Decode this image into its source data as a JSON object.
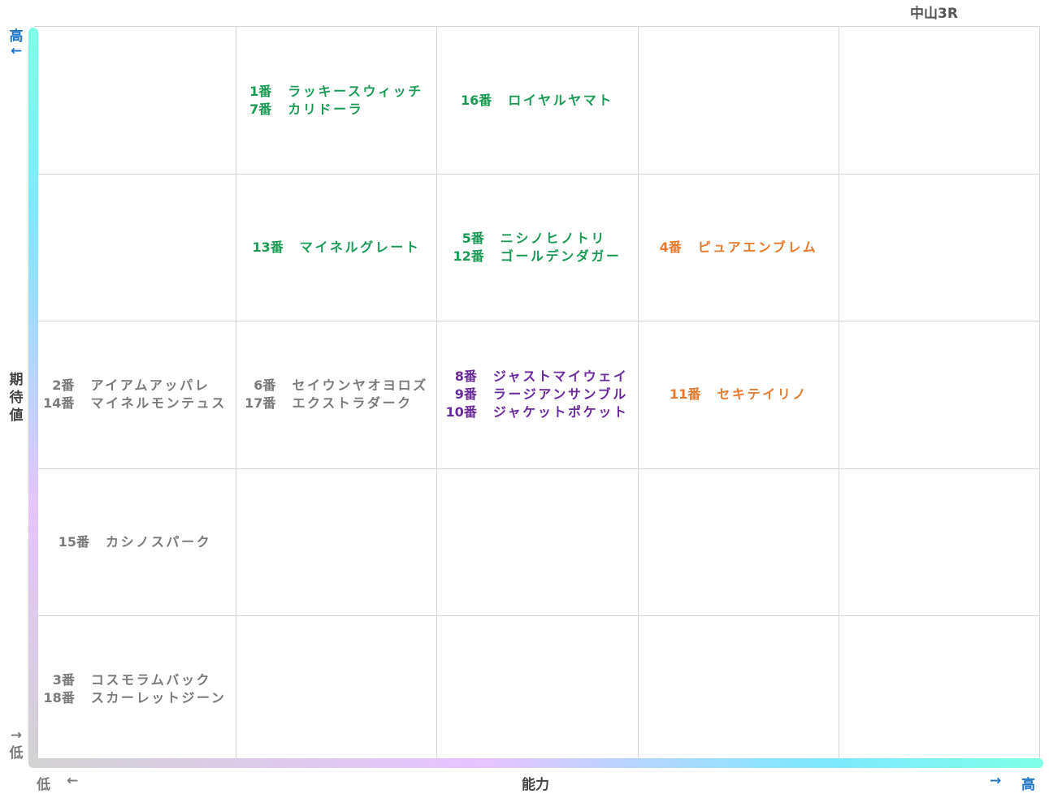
{
  "race_title": "中山3R",
  "chart_data": {
    "type": "table",
    "title": "中山3R",
    "xlabel": "能力",
    "ylabel": "期待値",
    "x_axis": {
      "low_label": "低",
      "high_label": "高",
      "low_arrow": "←",
      "high_arrow": "→",
      "levels": 5
    },
    "y_axis": {
      "low_label": "低",
      "high_label": "高",
      "low_arrow": "→",
      "high_arrow": "←",
      "levels": 5
    },
    "colors": {
      "green": "#1a9a55",
      "orange": "#e57a2c",
      "purple": "#6a2a9e",
      "gray": "#7a7a7a",
      "axis_text_blue": "#1e74c4",
      "grid": "#d4d4d4"
    },
    "cells": [
      {
        "ability": 2,
        "expectation": 5,
        "color": "green",
        "entries": [
          {
            "num": "1番",
            "name": "ラッキースウィッチ"
          },
          {
            "num": "7番",
            "name": "カリドーラ"
          }
        ]
      },
      {
        "ability": 3,
        "expectation": 5,
        "color": "green",
        "entries": [
          {
            "num": "16番",
            "name": "ロイヤルヤマト"
          }
        ]
      },
      {
        "ability": 2,
        "expectation": 4,
        "color": "green",
        "entries": [
          {
            "num": "13番",
            "name": "マイネルグレート"
          }
        ]
      },
      {
        "ability": 3,
        "expectation": 4,
        "color": "green",
        "entries": [
          {
            "num": "5番",
            "name": "ニシノヒノトリ"
          },
          {
            "num": "12番",
            "name": "ゴールデンダガー"
          }
        ]
      },
      {
        "ability": 4,
        "expectation": 4,
        "color": "orange",
        "entries": [
          {
            "num": "4番",
            "name": "ピュアエンブレム"
          }
        ]
      },
      {
        "ability": 1,
        "expectation": 3,
        "color": "gray",
        "entries": [
          {
            "num": "2番",
            "name": "アイアムアッパレ"
          },
          {
            "num": "14番",
            "name": "マイネルモンテュス"
          }
        ]
      },
      {
        "ability": 2,
        "expectation": 3,
        "color": "gray",
        "entries": [
          {
            "num": "6番",
            "name": "セイウンヤオヨロズ"
          },
          {
            "num": "17番",
            "name": "エクストラダーク"
          }
        ]
      },
      {
        "ability": 3,
        "expectation": 3,
        "color": "purple",
        "entries": [
          {
            "num": "8番",
            "name": "ジャストマイウェイ"
          },
          {
            "num": "9番",
            "name": "ラージアンサンブル"
          },
          {
            "num": "10番",
            "name": "ジャケットポケット"
          }
        ]
      },
      {
        "ability": 4,
        "expectation": 3,
        "color": "orange",
        "entries": [
          {
            "num": "11番",
            "name": "セキテイリノ"
          }
        ]
      },
      {
        "ability": 1,
        "expectation": 2,
        "color": "gray",
        "entries": [
          {
            "num": "15番",
            "name": "カシノスパーク"
          }
        ]
      },
      {
        "ability": 1,
        "expectation": 1,
        "color": "gray",
        "entries": [
          {
            "num": "3番",
            "name": "コスモラムバック"
          },
          {
            "num": "18番",
            "name": "スカーレットジーン"
          }
        ]
      }
    ]
  }
}
